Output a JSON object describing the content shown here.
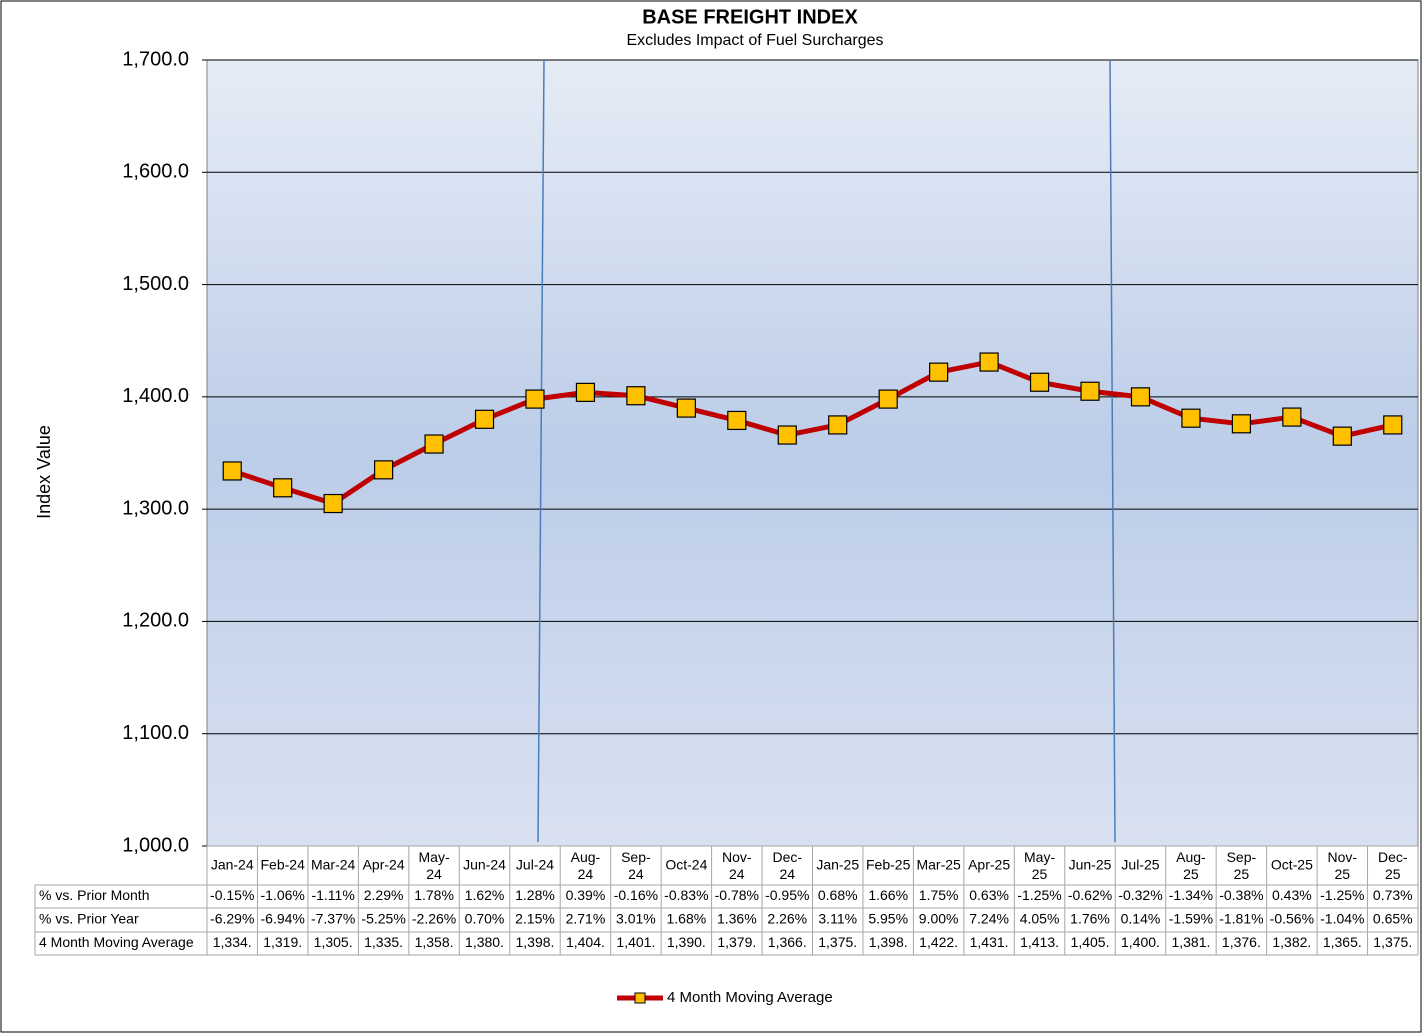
{
  "chart_data": {
    "type": "line",
    "title": "BASE FREIGHT INDEX",
    "subtitle": "Excludes Impact of Fuel Surcharges",
    "y_label": "Index Value",
    "categories": [
      "Jan-24",
      "Feb-24",
      "Mar-24",
      "Apr-24",
      "May-24",
      "Jun-24",
      "Jul-24",
      "Aug-24",
      "Sep-24",
      "Oct-24",
      "Nov-24",
      "Dec-24",
      "Jan-25",
      "Feb-25",
      "Mar-25",
      "Apr-25",
      "May-25",
      "Jun-25",
      "Jul-25",
      "Aug-25",
      "Sep-25",
      "Oct-25",
      "Nov-25",
      "Dec-25"
    ],
    "series": [
      {
        "name": "4 Month Moving Average",
        "color": "#c00000",
        "marker_color": "#ffc000",
        "values": [
          1334,
          1319,
          1305,
          1335,
          1358,
          1380,
          1398,
          1404,
          1401,
          1390,
          1379,
          1366,
          1375,
          1398,
          1422,
          1431,
          1413,
          1405,
          1400,
          1381,
          1376,
          1382,
          1365,
          1375
        ],
        "value_labels": [
          "1,334.",
          "1,319.",
          "1,305.",
          "1,335.",
          "1,358.",
          "1,380.",
          "1,398.",
          "1,404.",
          "1,401.",
          "1,390.",
          "1,379.",
          "1,366.",
          "1,375.",
          "1,398.",
          "1,422.",
          "1,431.",
          "1,413.",
          "1,405.",
          "1,400.",
          "1,381.",
          "1,376.",
          "1,382.",
          "1,365.",
          "1,375."
        ]
      }
    ],
    "ylim": [
      1000,
      1700
    ],
    "yticks": [
      {
        "value": 1000,
        "label": "1,000.0"
      },
      {
        "value": 1100,
        "label": "1,100.0"
      },
      {
        "value": 1200,
        "label": "1,200.0"
      },
      {
        "value": 1300,
        "label": "1,300.0"
      },
      {
        "value": 1400,
        "label": "1,400.0"
      },
      {
        "value": 1500,
        "label": "1,500.0"
      },
      {
        "value": 1600,
        "label": "1,600.0"
      },
      {
        "value": 1700,
        "label": "1,700.0"
      }
    ],
    "grid": true,
    "legend": "bottom",
    "table": {
      "rows": [
        {
          "label": "% vs. Prior Month",
          "cells": [
            "-0.15%",
            "-1.06%",
            "-1.11%",
            "2.29%",
            "1.78%",
            "1.62%",
            "1.28%",
            "0.39%",
            "-0.16%",
            "-0.83%",
            "-0.78%",
            "-0.95%",
            "0.68%",
            "1.66%",
            "1.75%",
            "0.63%",
            "-1.25%",
            "-0.62%",
            "-0.32%",
            "-1.34%",
            "-0.38%",
            "0.43%",
            "-1.25%",
            "0.73%"
          ]
        },
        {
          "label": "% vs. Prior Year",
          "cells": [
            "-6.29%",
            "-6.94%",
            "-7.37%",
            "-5.25%",
            "-2.26%",
            "0.70%",
            "2.15%",
            "2.71%",
            "3.01%",
            "1.68%",
            "1.36%",
            "2.26%",
            "3.11%",
            "5.95%",
            "9.00%",
            "7.24%",
            "4.05%",
            "1.76%",
            "0.14%",
            "-1.59%",
            "-1.81%",
            "-0.56%",
            "-1.04%",
            "0.65%"
          ]
        }
      ],
      "series_row_label": "4 Month Moving Average"
    }
  }
}
